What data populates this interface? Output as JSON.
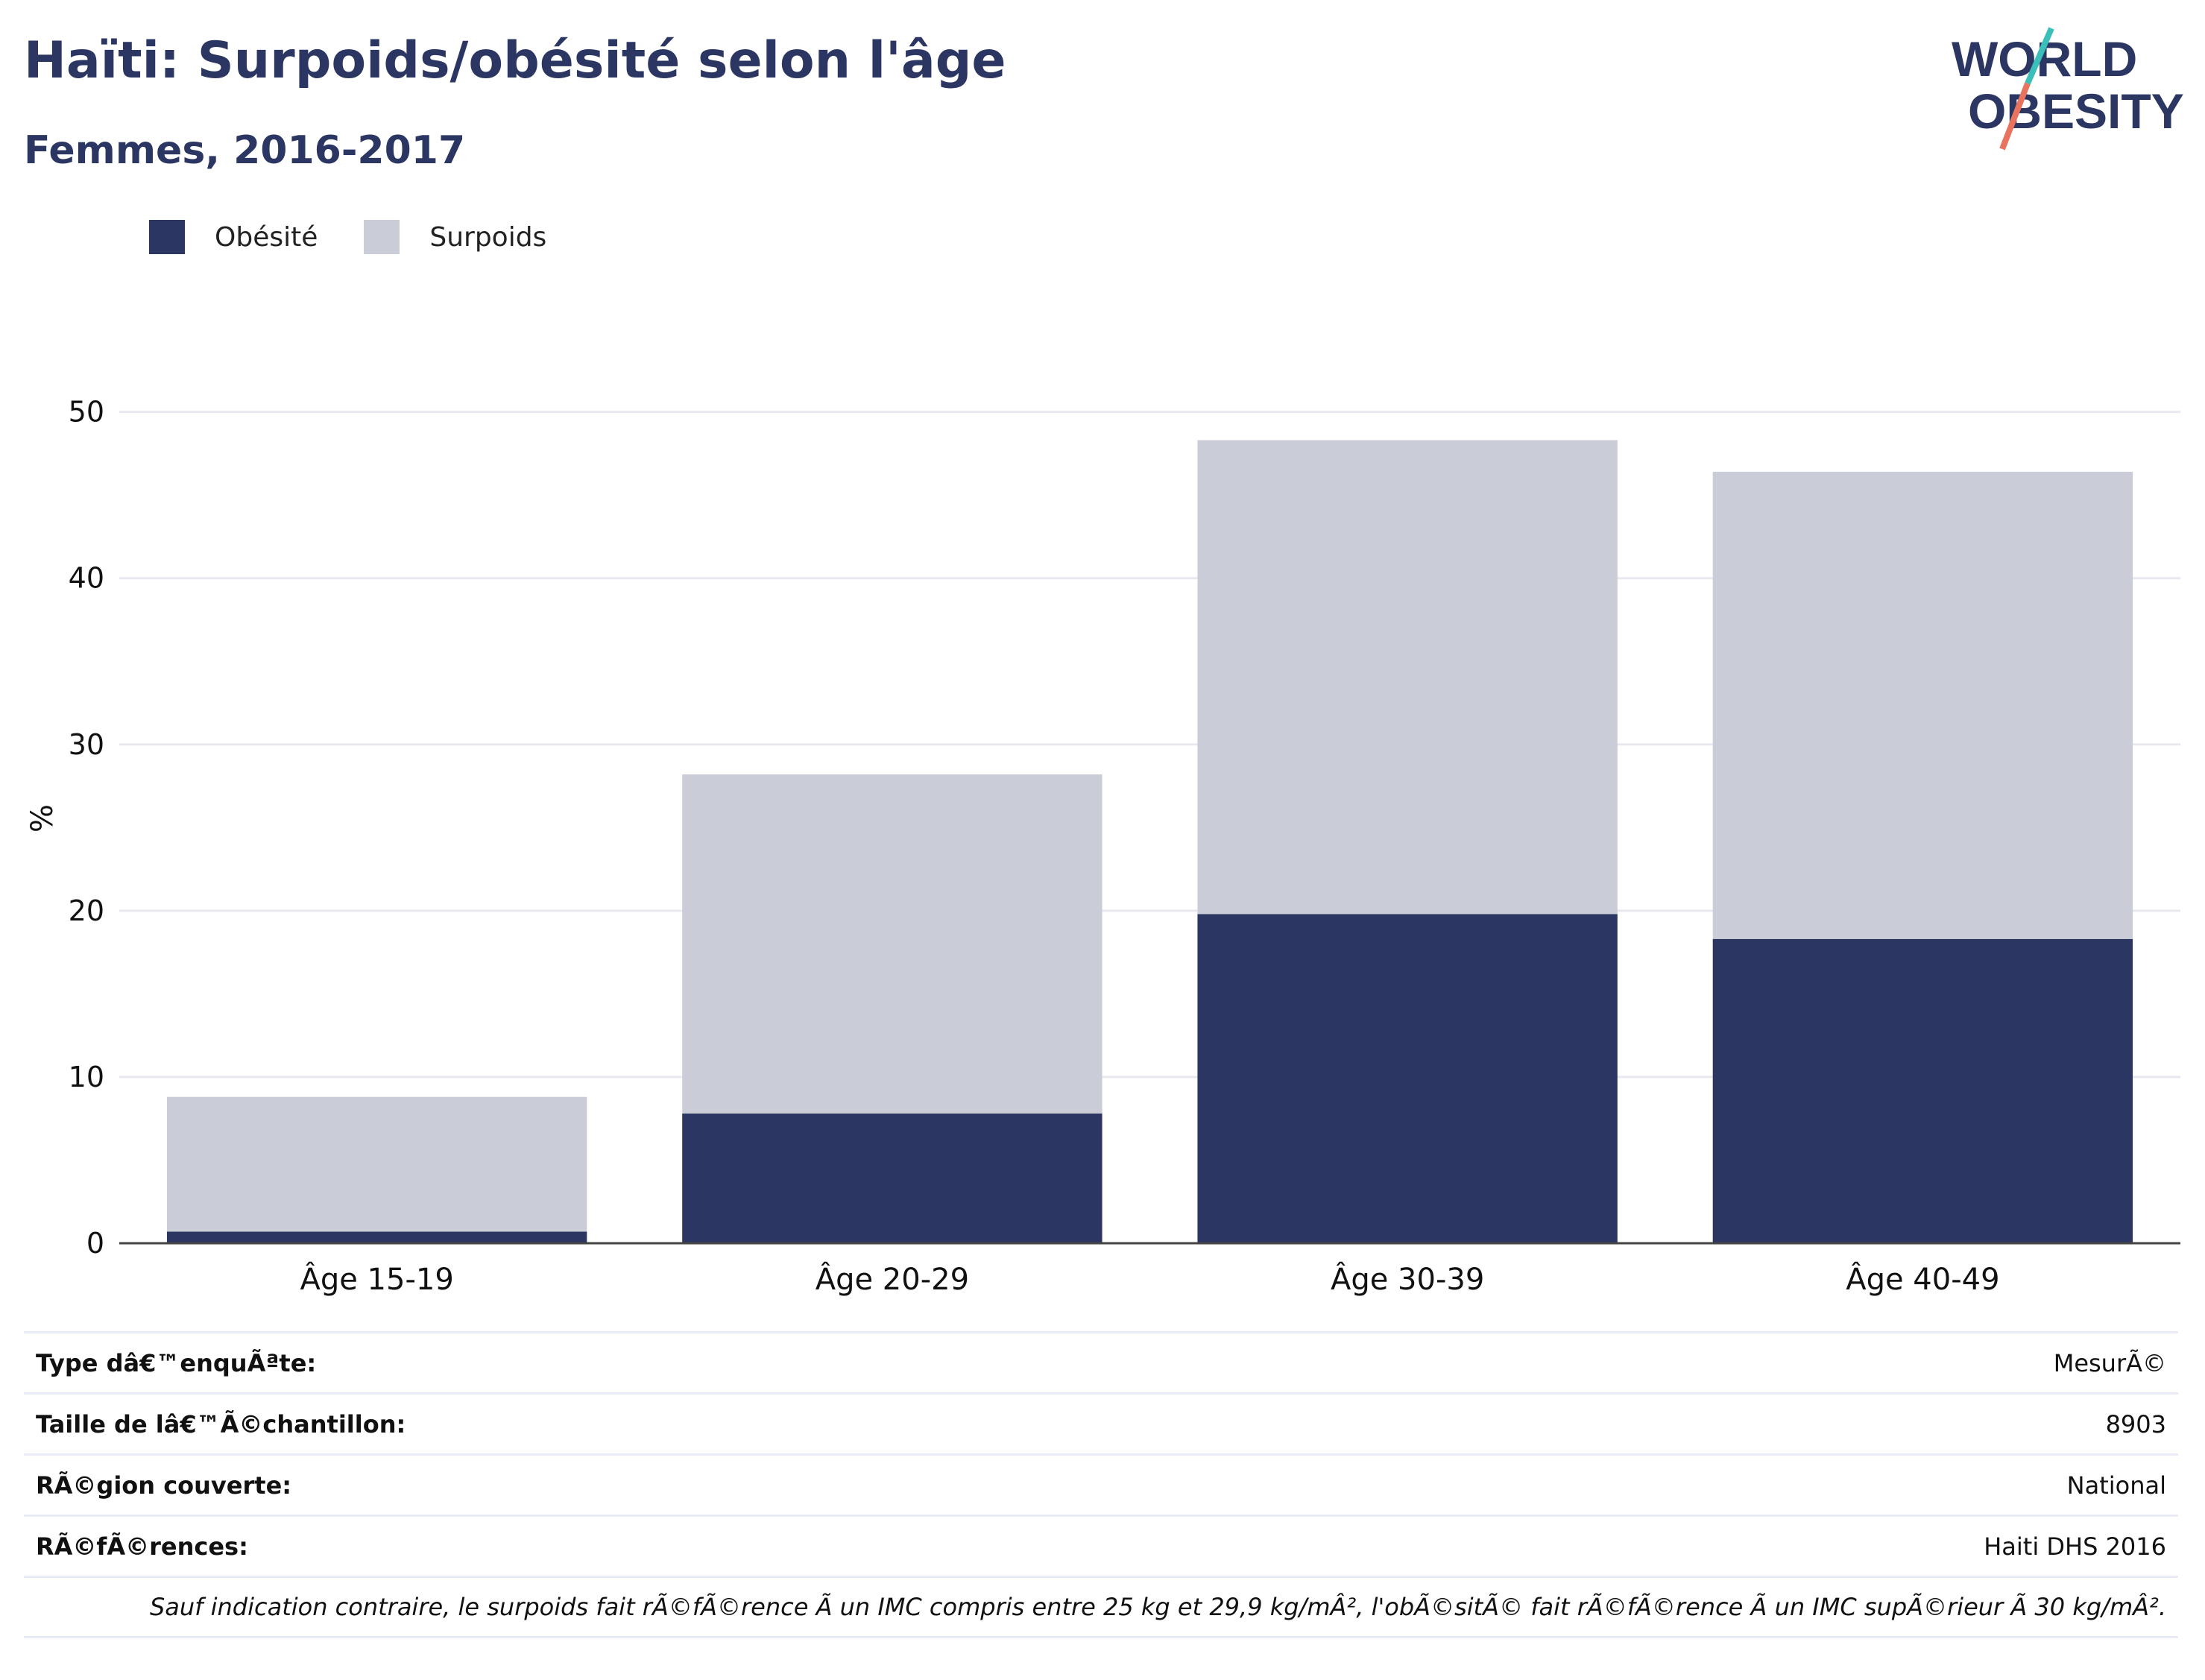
{
  "header": {
    "title": "Haïti: Surpoids/obésité selon l'âge",
    "subtitle": "Femmes, 2016-2017"
  },
  "logo": {
    "line1": "WORLD",
    "line2": "OBESITY"
  },
  "colors": {
    "obesity": "#2b3663",
    "overweight": "#cacdd8",
    "title": "#2b3663",
    "grid": "#e8e9f0",
    "logo_teal": "#3bbfb8",
    "logo_coral": "#e8735f"
  },
  "legend": {
    "items": [
      "Obésité",
      "Surpoids"
    ]
  },
  "chart_data": {
    "type": "bar",
    "stacked": true,
    "categories": [
      "Âge 15-19",
      "Âge 20-29",
      "Âge 30-39",
      "Âge 40-49"
    ],
    "series": [
      {
        "name": "Obésité",
        "values": [
          0.7,
          7.8,
          19.8,
          18.3
        ]
      },
      {
        "name": "Surpoids",
        "values": [
          8.1,
          20.4,
          28.5,
          28.1
        ]
      }
    ],
    "ylabel": "%",
    "ylim": [
      0,
      52
    ],
    "yticks": [
      0,
      10,
      20,
      30,
      40,
      50
    ],
    "grid": true,
    "legend_position": "top-left"
  },
  "meta": {
    "rows": [
      {
        "label": "Type dâ€™enquÃªte:",
        "value": "MesurÃ©"
      },
      {
        "label": "Taille de lâ€™Ã©chantillon:",
        "value": "8903"
      },
      {
        "label": "RÃ©gion couverte:",
        "value": "National"
      },
      {
        "label": "RÃ©fÃ©rences:",
        "value": "Haiti DHS 2016"
      }
    ],
    "note": "Sauf indication contraire, le surpoids fait rÃ©fÃ©rence Ã  un IMC compris entre 25 kg et 29,9 kg/mÂ², l'obÃ©sitÃ© fait rÃ©fÃ©rence Ã  un IMC supÃ©rieur Ã  30 kg/mÂ²."
  }
}
